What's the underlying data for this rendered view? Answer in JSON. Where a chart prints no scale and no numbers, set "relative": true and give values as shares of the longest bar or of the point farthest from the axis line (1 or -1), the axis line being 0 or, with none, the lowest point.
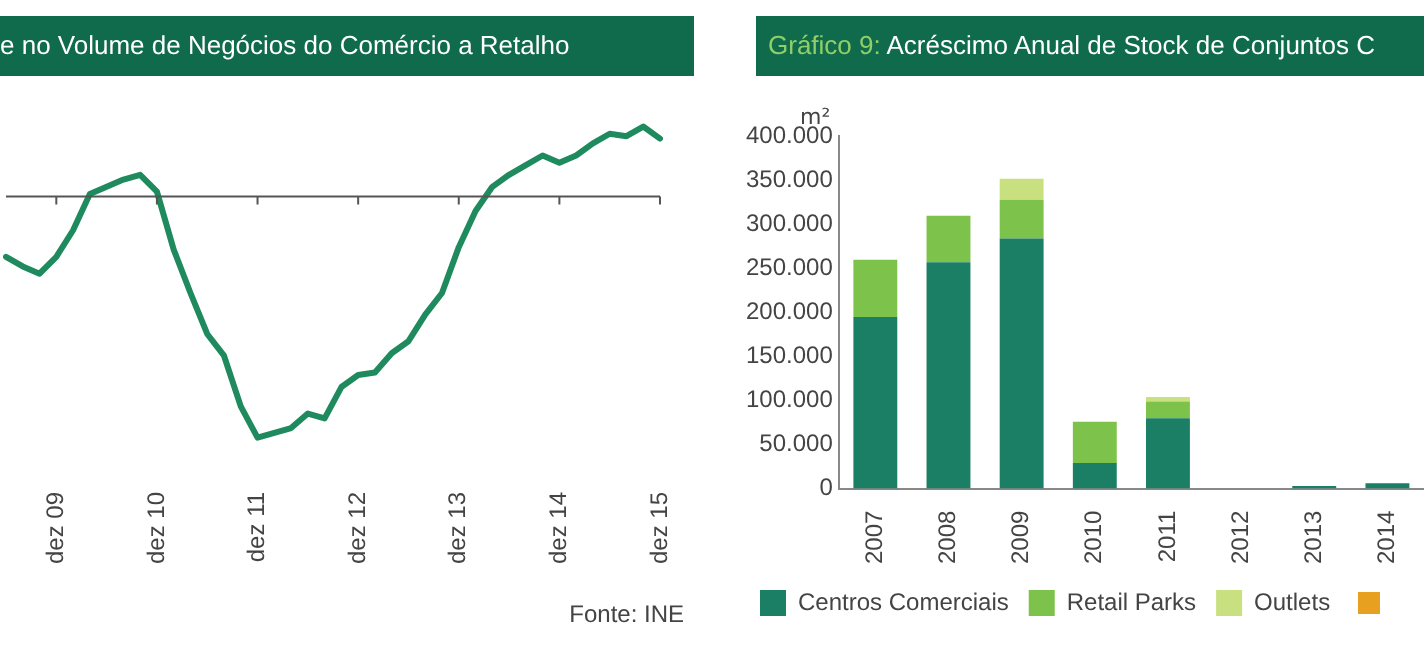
{
  "chart_data": [
    {
      "type": "line",
      "title": "e no Volume de Negócios do Comércio a Retalho",
      "relative": true,
      "categories": [
        null,
        null,
        null,
        "dez 09",
        null,
        null,
        null,
        null,
        null,
        "dez 10",
        null,
        null,
        null,
        null,
        null,
        "dez 11",
        null,
        null,
        null,
        null,
        null,
        "dez 12",
        null,
        null,
        null,
        null,
        null,
        "dez 13",
        null,
        null,
        null,
        null,
        null,
        "dez 14",
        null,
        null,
        null,
        null,
        null,
        "dez 15"
      ],
      "series": [
        {
          "color": "#1e8a5e",
          "values": [
            -0.25,
            -0.29,
            -0.32,
            -0.25,
            -0.14,
            0.01,
            0.04,
            0.07,
            0.09,
            0.02,
            -0.22,
            -0.4,
            -0.57,
            -0.66,
            -0.87,
            -1,
            -0.98,
            -0.96,
            -0.9,
            -0.92,
            -0.79,
            -0.74,
            -0.73,
            -0.65,
            -0.6,
            -0.49,
            -0.4,
            -0.21,
            -0.06,
            0.04,
            0.09,
            0.13,
            0.17,
            0.14,
            0.17,
            0.22,
            0.26,
            0.25,
            0.29,
            0.24
          ]
        }
      ],
      "annotations": [
        "Fonte: INE"
      ],
      "legend": false,
      "grid": false,
      "marker": "none"
    },
    {
      "type": "bar",
      "title": "Gráfico 9: Acréscimo Anual de Stock de Conjuntos C",
      "ylabel": "m²",
      "stacked": true,
      "categories": [
        "2007",
        "2008",
        "2009",
        "2010",
        "2011",
        "2012",
        "2013",
        "2014"
      ],
      "series": [
        {
          "name": "Centros Comerciais",
          "color": "#1a7f64",
          "values": [
            195000,
            257000,
            284000,
            29000,
            80000,
            0,
            3000,
            6000
          ]
        },
        {
          "name": "Retail Parks",
          "color": "#7dc24a",
          "values": [
            65000,
            53000,
            44000,
            47000,
            19000,
            0,
            0,
            0
          ]
        },
        {
          "name": "Outlets",
          "color": "#c8e07f",
          "values": [
            0,
            0,
            24000,
            0,
            5000,
            0,
            0,
            0
          ]
        }
      ],
      "ylim": [
        0,
        400000
      ],
      "yticks": [
        0,
        {
          "value": 50000,
          "label": "50.000"
        },
        {
          "value": 100000,
          "label": "100.000"
        },
        {
          "value": 150000,
          "label": "150.000"
        },
        {
          "value": 200000,
          "label": "200.000"
        },
        {
          "value": 250000,
          "label": "250.000"
        },
        {
          "value": 300000,
          "label": "300.000"
        },
        {
          "value": 350000,
          "label": "350.000"
        },
        {
          "value": 400000,
          "label": "400.000"
        }
      ],
      "legend": "bottom",
      "grid": false
    }
  ]
}
